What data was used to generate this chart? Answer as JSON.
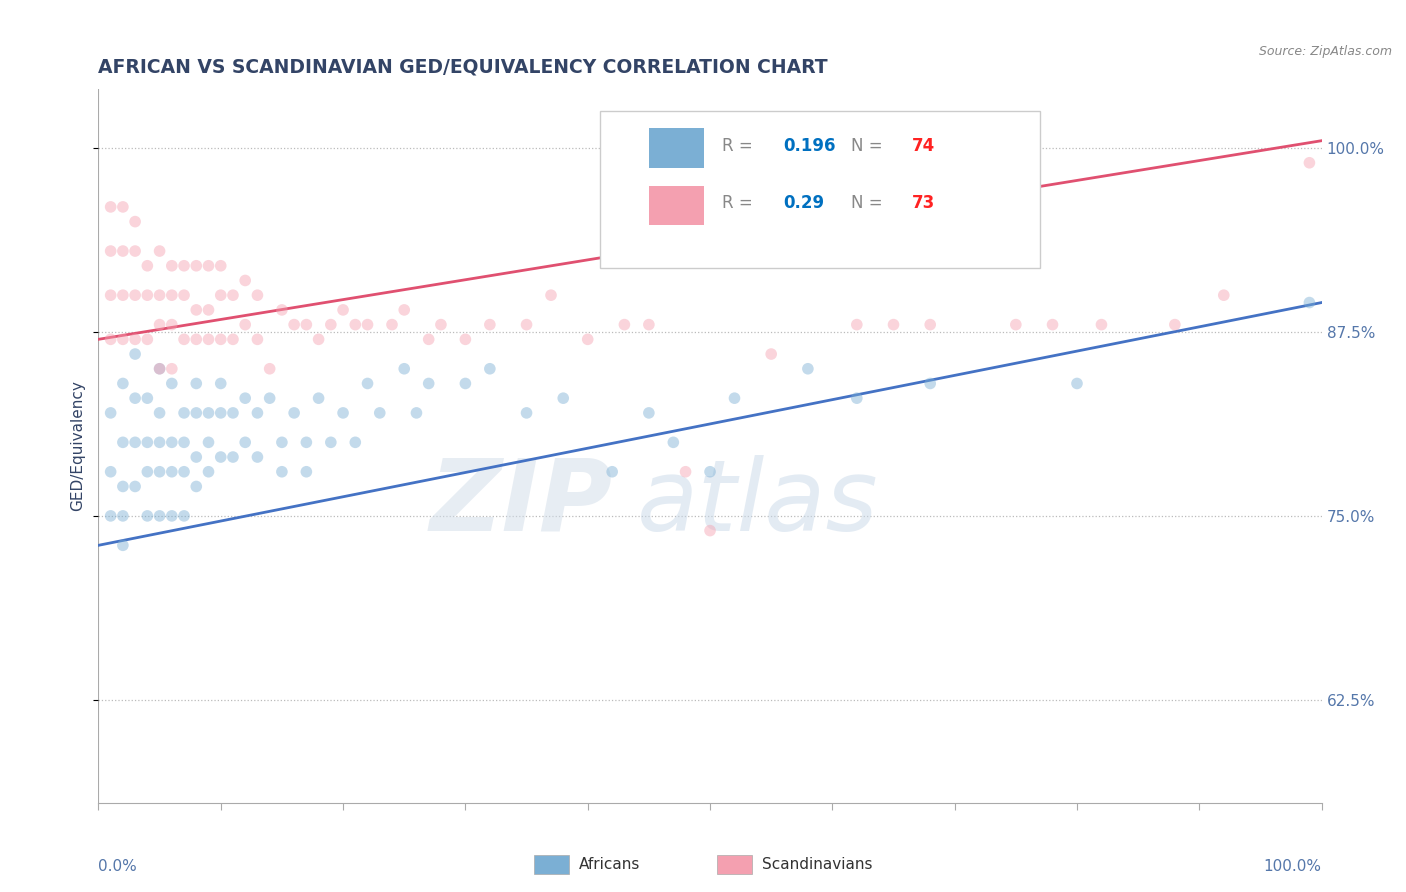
{
  "title": "AFRICAN VS SCANDINAVIAN GED/EQUIVALENCY CORRELATION CHART",
  "source": "Source: ZipAtlas.com",
  "ylabel": "GED/Equivalency",
  "right_yticks": [
    0.625,
    0.75,
    0.875,
    1.0
  ],
  "right_ytick_labels": [
    "62.5%",
    "75.0%",
    "87.5%",
    "100.0%"
  ],
  "xlim": [
    0.0,
    1.0
  ],
  "ylim": [
    0.555,
    1.04
  ],
  "african_color": "#7BAFD4",
  "scandinavian_color": "#F4A0B0",
  "african_line_color": "#4472C4",
  "scandinavian_line_color": "#E05070",
  "african_R": 0.196,
  "african_N": 74,
  "scandinavian_R": 0.29,
  "scandinavian_N": 73,
  "african_line_start": 0.73,
  "african_line_end": 0.895,
  "scandinavian_line_start": 0.87,
  "scandinavian_line_end": 1.005,
  "africans_x": [
    0.01,
    0.01,
    0.01,
    0.02,
    0.02,
    0.02,
    0.02,
    0.02,
    0.03,
    0.03,
    0.03,
    0.03,
    0.04,
    0.04,
    0.04,
    0.04,
    0.05,
    0.05,
    0.05,
    0.05,
    0.05,
    0.06,
    0.06,
    0.06,
    0.06,
    0.07,
    0.07,
    0.07,
    0.07,
    0.08,
    0.08,
    0.08,
    0.08,
    0.09,
    0.09,
    0.09,
    0.1,
    0.1,
    0.1,
    0.11,
    0.11,
    0.12,
    0.12,
    0.13,
    0.13,
    0.14,
    0.15,
    0.15,
    0.16,
    0.17,
    0.17,
    0.18,
    0.19,
    0.2,
    0.21,
    0.22,
    0.23,
    0.25,
    0.26,
    0.27,
    0.3,
    0.32,
    0.35,
    0.38,
    0.42,
    0.45,
    0.47,
    0.5,
    0.52,
    0.58,
    0.62,
    0.68,
    0.8,
    0.99
  ],
  "africans_y": [
    0.82,
    0.78,
    0.75,
    0.84,
    0.8,
    0.77,
    0.75,
    0.73,
    0.86,
    0.83,
    0.8,
    0.77,
    0.83,
    0.8,
    0.78,
    0.75,
    0.85,
    0.82,
    0.8,
    0.78,
    0.75,
    0.84,
    0.8,
    0.78,
    0.75,
    0.82,
    0.8,
    0.78,
    0.75,
    0.84,
    0.82,
    0.79,
    0.77,
    0.82,
    0.8,
    0.78,
    0.84,
    0.82,
    0.79,
    0.82,
    0.79,
    0.83,
    0.8,
    0.82,
    0.79,
    0.83,
    0.8,
    0.78,
    0.82,
    0.8,
    0.78,
    0.83,
    0.8,
    0.82,
    0.8,
    0.84,
    0.82,
    0.85,
    0.82,
    0.84,
    0.84,
    0.85,
    0.82,
    0.83,
    0.78,
    0.82,
    0.8,
    0.78,
    0.83,
    0.85,
    0.83,
    0.84,
    0.84,
    0.895
  ],
  "scandinavians_x": [
    0.01,
    0.01,
    0.01,
    0.01,
    0.02,
    0.02,
    0.02,
    0.02,
    0.03,
    0.03,
    0.03,
    0.03,
    0.04,
    0.04,
    0.04,
    0.05,
    0.05,
    0.05,
    0.05,
    0.06,
    0.06,
    0.06,
    0.06,
    0.07,
    0.07,
    0.07,
    0.08,
    0.08,
    0.08,
    0.09,
    0.09,
    0.09,
    0.1,
    0.1,
    0.1,
    0.11,
    0.11,
    0.12,
    0.12,
    0.13,
    0.13,
    0.14,
    0.15,
    0.16,
    0.17,
    0.18,
    0.19,
    0.2,
    0.21,
    0.22,
    0.24,
    0.25,
    0.27,
    0.28,
    0.3,
    0.32,
    0.35,
    0.37,
    0.4,
    0.43,
    0.45,
    0.48,
    0.5,
    0.55,
    0.62,
    0.65,
    0.68,
    0.75,
    0.78,
    0.82,
    0.88,
    0.92,
    0.99
  ],
  "scandinavians_y": [
    0.96,
    0.93,
    0.9,
    0.87,
    0.96,
    0.93,
    0.9,
    0.87,
    0.95,
    0.93,
    0.9,
    0.87,
    0.92,
    0.9,
    0.87,
    0.93,
    0.9,
    0.88,
    0.85,
    0.92,
    0.9,
    0.88,
    0.85,
    0.92,
    0.9,
    0.87,
    0.92,
    0.89,
    0.87,
    0.92,
    0.89,
    0.87,
    0.92,
    0.9,
    0.87,
    0.9,
    0.87,
    0.91,
    0.88,
    0.9,
    0.87,
    0.85,
    0.89,
    0.88,
    0.88,
    0.87,
    0.88,
    0.89,
    0.88,
    0.88,
    0.88,
    0.89,
    0.87,
    0.88,
    0.87,
    0.88,
    0.88,
    0.9,
    0.87,
    0.88,
    0.88,
    0.78,
    0.74,
    0.86,
    0.88,
    0.88,
    0.88,
    0.88,
    0.88,
    0.88,
    0.88,
    0.9,
    0.99
  ],
  "marker_size": 70,
  "marker_alpha": 0.45,
  "line_width": 2.0,
  "watermark_zip_color": "#D0DCE8",
  "watermark_atlas_color": "#C8D8E8",
  "watermark_alpha": 0.5,
  "watermark_fontsize": 72,
  "xtick_positions": [
    0.0,
    0.1,
    0.2,
    0.3,
    0.4,
    0.5,
    0.6,
    0.7,
    0.8,
    0.9,
    1.0
  ],
  "legend_R_color": "#0070C0",
  "legend_N_color": "#FF0000",
  "label_color": "#5577AA"
}
